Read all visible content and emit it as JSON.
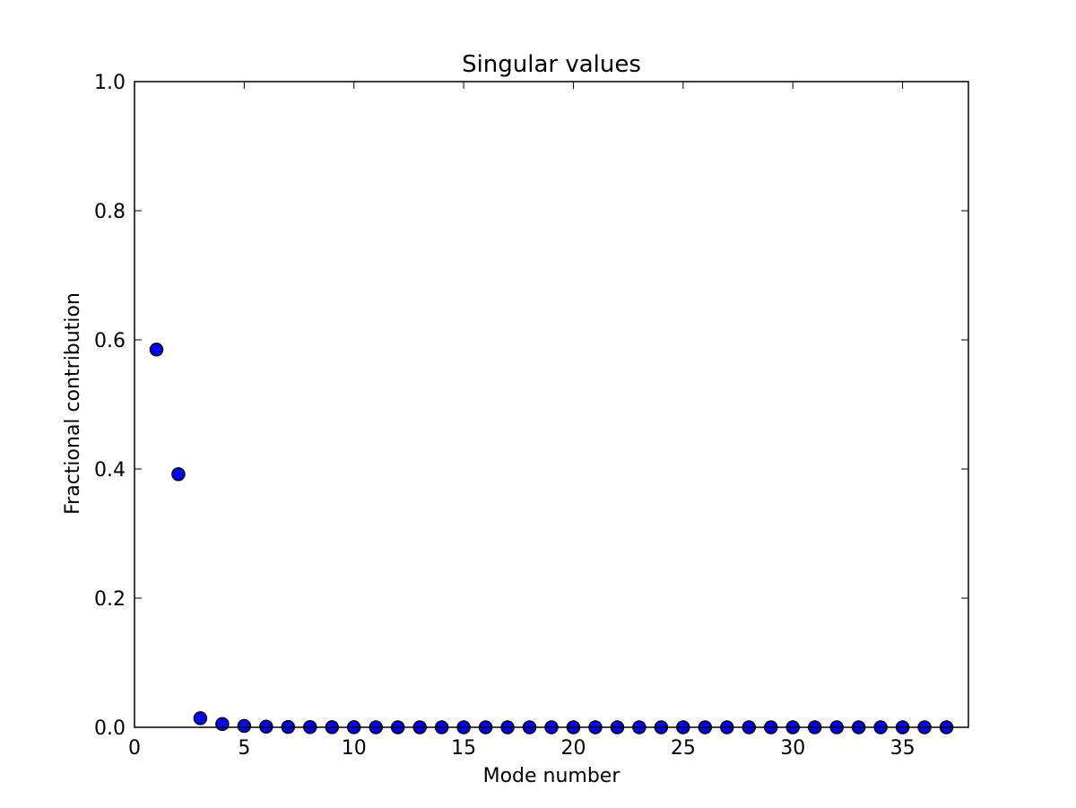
{
  "chart_data": {
    "type": "scatter",
    "title": "Singular values",
    "xlabel": "Mode number",
    "ylabel": "Fractional contribution",
    "xlim": [
      0,
      38
    ],
    "ylim": [
      0.0,
      1.0
    ],
    "xticks": [
      0,
      5,
      10,
      15,
      20,
      25,
      30,
      35
    ],
    "xtick_labels": [
      "0",
      "5",
      "10",
      "15",
      "20",
      "25",
      "30",
      "35"
    ],
    "yticks": [
      0.0,
      0.2,
      0.4,
      0.6,
      0.8,
      1.0
    ],
    "ytick_labels": [
      "0.0",
      "0.2",
      "0.4",
      "0.6",
      "0.8",
      "1.0"
    ],
    "grid": false,
    "marker_color": "#0000ff",
    "marker_edge_color": "#000000",
    "series": [
      {
        "x": [
          1,
          2,
          3,
          4,
          5,
          6,
          7,
          8,
          9,
          10,
          11,
          12,
          13,
          14,
          15,
          16,
          17,
          18,
          19,
          20,
          21,
          22,
          23,
          24,
          25,
          26,
          27,
          28,
          29,
          30,
          31,
          32,
          33,
          34,
          35,
          36,
          37
        ],
        "values": [
          0.585,
          0.392,
          0.014,
          0.005,
          0.002,
          0.001,
          0.0005,
          0.0003,
          0.0002,
          0.0001,
          0,
          0,
          0,
          0,
          0,
          0,
          0,
          0,
          0,
          0,
          0,
          0,
          0,
          0,
          0,
          0,
          0,
          0,
          0,
          0,
          0,
          0,
          0,
          0,
          0,
          0,
          0
        ]
      }
    ]
  }
}
